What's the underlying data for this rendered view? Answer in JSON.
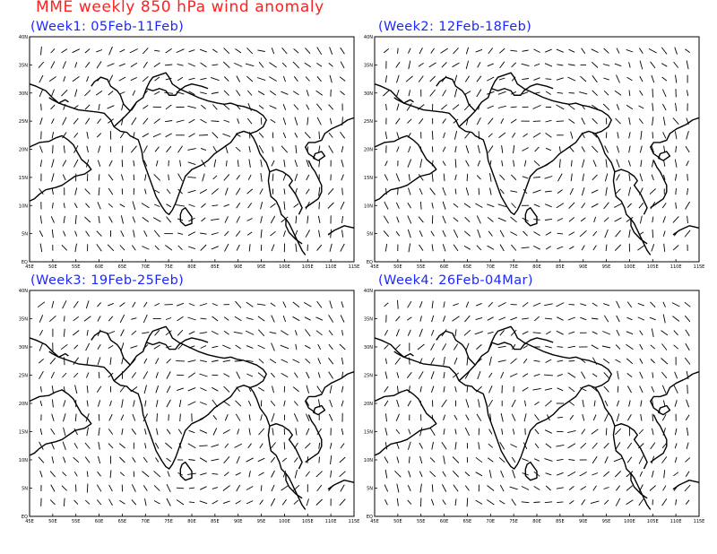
{
  "title": "MME weekly 850 hPa wind anomaly",
  "panels": [
    {
      "title": "(Week1: 05Feb-11Feb)"
    },
    {
      "title": "(Week2: 12Feb-18Feb)"
    },
    {
      "title": "(Week3: 19Feb-25Feb)"
    },
    {
      "title": "(Week4: 26Feb-04Mar)"
    }
  ],
  "map": {
    "lon_range": [
      45,
      115
    ],
    "lat_range": [
      0,
      40
    ],
    "lon_ticks": [
      "45E",
      "50E",
      "55E",
      "60E",
      "65E",
      "70E",
      "75E",
      "80E",
      "85E",
      "90E",
      "95E",
      "100E",
      "105E",
      "110E",
      "115E"
    ],
    "lat_ticks": [
      "EQ",
      "5N",
      "10N",
      "15N",
      "20N",
      "25N",
      "30N",
      "35N",
      "40N"
    ],
    "grid_step_deg": 2.5
  },
  "colors": {
    "title": "#ff2020",
    "panel_title": "#1a28ff",
    "lines": "#000000"
  }
}
